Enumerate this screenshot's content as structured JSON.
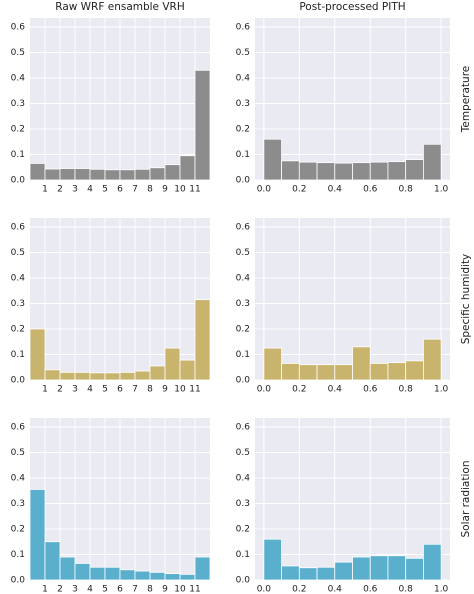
{
  "chart_data": [
    {
      "type": "histogram",
      "title": "Raw WRF ensamble VRH",
      "color": "#8c8c8c",
      "bins": [
        0,
        1,
        2,
        3,
        4,
        5,
        6,
        7,
        8,
        9,
        10,
        11,
        12
      ],
      "values": [
        0.065,
        0.043,
        0.045,
        0.045,
        0.042,
        0.04,
        0.04,
        0.042,
        0.048,
        0.06,
        0.095,
        0.43
      ],
      "xlim": [
        0,
        12
      ],
      "xticks": [
        1,
        2,
        3,
        4,
        5,
        6,
        7,
        8,
        9,
        10,
        11
      ],
      "ylim": [
        0,
        0.635
      ],
      "yticks": [
        {
          "value": 0,
          "label": "0.0"
        },
        0.1,
        0.2,
        0.3,
        0.4,
        0.5,
        0.6
      ],
      "grid": true
    },
    {
      "type": "histogram",
      "title": "Post-processed PITH",
      "row_label": "Temperature",
      "color": "#8c8c8c",
      "bins": [
        0,
        0.1,
        0.2,
        0.3,
        0.4,
        0.5,
        0.6,
        0.7,
        0.8,
        0.9,
        1
      ],
      "values": [
        0.16,
        0.075,
        0.07,
        0.068,
        0.066,
        0.068,
        0.07,
        0.072,
        0.08,
        0.14
      ],
      "xlim": [
        -0.05,
        1.05
      ],
      "xticks": [
        {
          "value": 0,
          "label": "0.0"
        },
        0.2,
        0.4,
        0.6,
        0.8,
        {
          "value": 1,
          "label": "1.0"
        }
      ],
      "ylim": [
        0,
        0.635
      ],
      "yticks": [
        {
          "value": 0,
          "label": "0.0"
        },
        0.1,
        0.2,
        0.3,
        0.4,
        0.5,
        0.6
      ],
      "grid": true
    },
    {
      "type": "histogram",
      "color": "#c9b46e",
      "bins": [
        0,
        1,
        2,
        3,
        4,
        5,
        6,
        7,
        8,
        9,
        10,
        11,
        12
      ],
      "values": [
        0.2,
        0.04,
        0.03,
        0.03,
        0.028,
        0.028,
        0.03,
        0.035,
        0.055,
        0.125,
        0.078,
        0.315
      ],
      "xlim": [
        0,
        12
      ],
      "xticks": [
        1,
        2,
        3,
        4,
        5,
        6,
        7,
        8,
        9,
        10,
        11
      ],
      "ylim": [
        0,
        0.635
      ],
      "yticks": [
        {
          "value": 0,
          "label": "0.0"
        },
        0.1,
        0.2,
        0.3,
        0.4,
        0.5,
        0.6
      ],
      "grid": true
    },
    {
      "type": "histogram",
      "row_label": "Specific humidity",
      "color": "#c9b46e",
      "bins": [
        0,
        0.1,
        0.2,
        0.3,
        0.4,
        0.5,
        0.6,
        0.7,
        0.8,
        0.9,
        1
      ],
      "values": [
        0.125,
        0.065,
        0.06,
        0.06,
        0.06,
        0.13,
        0.065,
        0.068,
        0.075,
        0.16
      ],
      "xlim": [
        -0.05,
        1.05
      ],
      "xticks": [
        {
          "value": 0,
          "label": "0.0"
        },
        0.2,
        0.4,
        0.6,
        0.8,
        {
          "value": 1,
          "label": "1.0"
        }
      ],
      "ylim": [
        0,
        0.635
      ],
      "yticks": [
        {
          "value": 0,
          "label": "0.0"
        },
        0.1,
        0.2,
        0.3,
        0.4,
        0.5,
        0.6
      ],
      "grid": true
    },
    {
      "type": "histogram",
      "color": "#5aafcd",
      "bins": [
        0,
        1,
        2,
        3,
        4,
        5,
        6,
        7,
        8,
        9,
        10,
        11,
        12
      ],
      "values": [
        0.355,
        0.15,
        0.09,
        0.065,
        0.05,
        0.05,
        0.04,
        0.035,
        0.03,
        0.025,
        0.022,
        0.09
      ],
      "xlim": [
        0,
        12
      ],
      "xticks": [
        1,
        2,
        3,
        4,
        5,
        6,
        7,
        8,
        9,
        10,
        11
      ],
      "ylim": [
        0,
        0.635
      ],
      "yticks": [
        {
          "value": 0,
          "label": "0.0"
        },
        0.1,
        0.2,
        0.3,
        0.4,
        0.5,
        0.6
      ],
      "grid": true
    },
    {
      "type": "histogram",
      "row_label": "Solar radiation",
      "color": "#5aafcd",
      "bins": [
        0,
        0.1,
        0.2,
        0.3,
        0.4,
        0.5,
        0.6,
        0.7,
        0.8,
        0.9,
        1
      ],
      "values": [
        0.16,
        0.055,
        0.048,
        0.05,
        0.07,
        0.09,
        0.095,
        0.095,
        0.085,
        0.14
      ],
      "xlim": [
        -0.05,
        1.05
      ],
      "xticks": [
        {
          "value": 0,
          "label": "0.0"
        },
        0.2,
        0.4,
        0.6,
        0.8,
        {
          "value": 1,
          "label": "1.0"
        }
      ],
      "ylim": [
        0,
        0.635
      ],
      "yticks": [
        {
          "value": 0,
          "label": "0.0"
        },
        0.1,
        0.2,
        0.3,
        0.4,
        0.5,
        0.6
      ],
      "grid": true
    }
  ]
}
